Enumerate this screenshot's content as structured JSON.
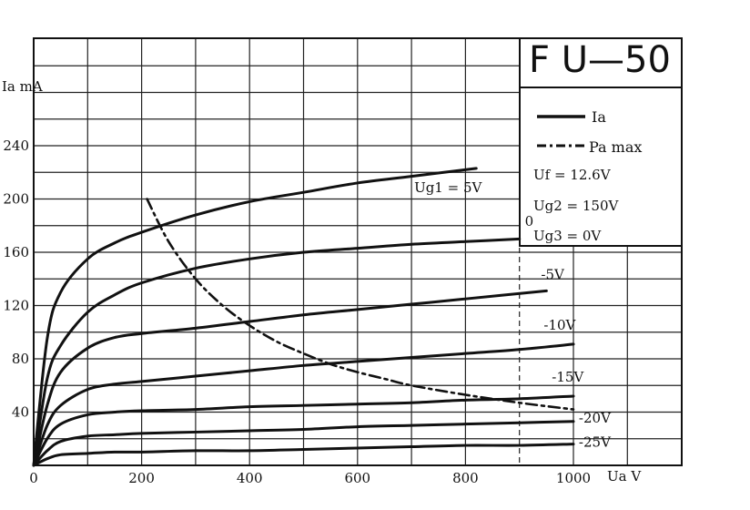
{
  "chart_data": {
    "type": "line",
    "title": "F U—50",
    "xlabel": "Ua V",
    "ylabel": "Ia mA",
    "xlim": [
      0,
      1000
    ],
    "ylim": [
      0,
      240
    ],
    "x_ticks": [
      "0",
      "200",
      "400",
      "600",
      "800",
      "1000"
    ],
    "y_ticks": [
      "40",
      "80",
      "120",
      "160",
      "200",
      "240"
    ],
    "grid": true,
    "legend_position": "top-right",
    "legend": [
      {
        "label": "Ia",
        "style": "solid"
      },
      {
        "label": "Pa max",
        "style": "dash-dot"
      }
    ],
    "parameters": [
      "Uf = 12.6V",
      "Ug2 = 150V",
      "Ug3 = 0V"
    ],
    "series": [
      {
        "name": "Ug1 = 5V",
        "x": [
          0,
          25,
          50,
          100,
          150,
          200,
          300,
          400,
          500,
          600,
          700,
          820
        ],
        "y": [
          0,
          95,
          130,
          155,
          167,
          175,
          188,
          198,
          205,
          212,
          217,
          223
        ]
      },
      {
        "name": "0",
        "x": [
          0,
          25,
          50,
          100,
          150,
          200,
          300,
          400,
          500,
          600,
          700,
          800,
          900
        ],
        "y": [
          0,
          65,
          90,
          115,
          128,
          137,
          148,
          155,
          160,
          163,
          166,
          168,
          170
        ]
      },
      {
        "name": "-5V",
        "x": [
          0,
          25,
          50,
          100,
          150,
          200,
          300,
          400,
          500,
          600,
          700,
          800,
          950
        ],
        "y": [
          0,
          45,
          70,
          88,
          96,
          99,
          103,
          108,
          113,
          117,
          121,
          125,
          131
        ]
      },
      {
        "name": "-10V",
        "x": [
          0,
          25,
          50,
          100,
          150,
          200,
          300,
          400,
          500,
          600,
          700,
          800,
          900,
          1000
        ],
        "y": [
          0,
          30,
          45,
          57,
          61,
          63,
          67,
          71,
          75,
          78,
          81,
          84,
          87,
          91
        ]
      },
      {
        "name": "-15V",
        "x": [
          0,
          25,
          50,
          100,
          150,
          200,
          300,
          400,
          500,
          600,
          700,
          800,
          900,
          1000
        ],
        "y": [
          0,
          20,
          31,
          38,
          40,
          41,
          42,
          44,
          45,
          46,
          47,
          49,
          50,
          52
        ]
      },
      {
        "name": "-20V",
        "x": [
          0,
          25,
          50,
          100,
          150,
          200,
          300,
          400,
          500,
          600,
          700,
          800,
          900,
          1000
        ],
        "y": [
          0,
          11,
          18,
          22,
          23,
          24,
          25,
          26,
          27,
          29,
          30,
          31,
          32,
          33
        ]
      },
      {
        "name": "-25V",
        "x": [
          0,
          25,
          50,
          100,
          150,
          200,
          300,
          400,
          500,
          600,
          700,
          800,
          900,
          1000
        ],
        "y": [
          0,
          5,
          8,
          9,
          10,
          10,
          11,
          11,
          12,
          13,
          14,
          15,
          15,
          16
        ]
      },
      {
        "name": "Pa max",
        "x": [
          210,
          250,
          300,
          350,
          400,
          450,
          500,
          550,
          600,
          650,
          700,
          800,
          900,
          1000
        ],
        "y": [
          200,
          168,
          140,
          120,
          105,
          93,
          84,
          76,
          70,
          65,
          60,
          53,
          47,
          42
        ]
      }
    ]
  }
}
